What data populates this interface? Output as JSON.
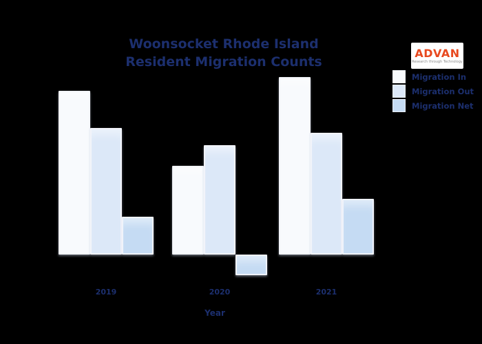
{
  "page": {
    "background": "#000000",
    "accent_navy": "#1c2f6e"
  },
  "title": {
    "line1": "Woonsocket Rhode Island",
    "line2": "Resident Migration Counts"
  },
  "logo": {
    "text": "ADVAN",
    "tagline": "Research through Technology",
    "color": "#e8491f"
  },
  "legend": {
    "items": [
      {
        "label": "Migration In",
        "color": "#f8fafd"
      },
      {
        "label": "Migration Out",
        "color": "#dce8f8"
      },
      {
        "label": "Migration Net",
        "color": "#c5dbf3"
      }
    ]
  },
  "x_axis": {
    "title": "Year"
  },
  "chart_data": {
    "type": "bar",
    "title": "Woonsocket Rhode Island Resident Migration Counts",
    "categories": [
      "2019",
      "2020",
      "2021"
    ],
    "series": [
      {
        "name": "Migration In",
        "values": [
          2400,
          1300,
          2600
        ],
        "color": "#f8fafd"
      },
      {
        "name": "Migration Out",
        "values": [
          1850,
          1600,
          1780
        ],
        "color": "#dce8f8"
      },
      {
        "name": "Migration Net",
        "values": [
          550,
          -300,
          820
        ],
        "color": "#c5dbf3"
      }
    ],
    "xlabel": "Year",
    "ylabel": "",
    "ylim": [
      -400,
      2700
    ],
    "grid": false,
    "y_axis_visible": false,
    "legend_position": "upper right",
    "background": "#000000"
  }
}
